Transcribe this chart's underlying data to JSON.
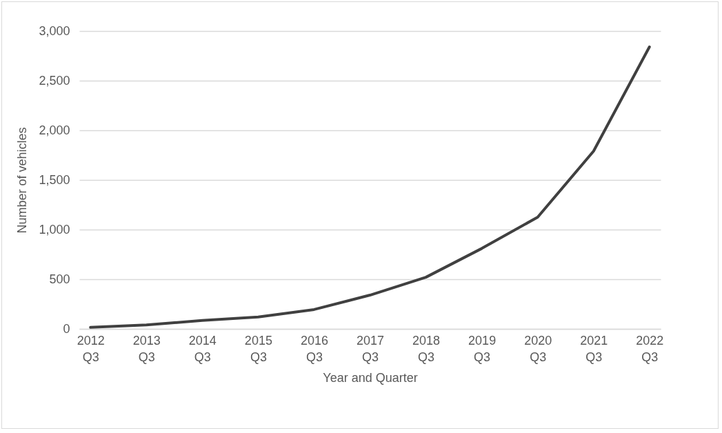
{
  "chart_data": {
    "type": "line",
    "xlabel": "Year and Quarter",
    "ylabel": "Number of vehicles",
    "categories": [
      "2012 Q3",
      "2013 Q3",
      "2014 Q3",
      "2015 Q3",
      "2016 Q3",
      "2017 Q3",
      "2018 Q3",
      "2019 Q3",
      "2020 Q3",
      "2021 Q3",
      "2022 Q3"
    ],
    "series": [
      {
        "color": "#404040",
        "values": [
          15,
          40,
          85,
          120,
          195,
          340,
          520,
          810,
          1125,
          1790,
          2840
        ]
      }
    ],
    "ylim": [
      0,
      3000
    ],
    "yticks": [
      0,
      {
        "value": 500,
        "label": "500"
      },
      {
        "value": 1000,
        "label": "1,000"
      },
      {
        "value": 1500,
        "label": "1,500"
      },
      {
        "value": 2000,
        "label": "2,000"
      },
      {
        "value": 2500,
        "label": "2,500"
      },
      {
        "value": 3000,
        "label": "3,000"
      }
    ],
    "grid": "y",
    "marker": "none",
    "line_style": "solid"
  }
}
